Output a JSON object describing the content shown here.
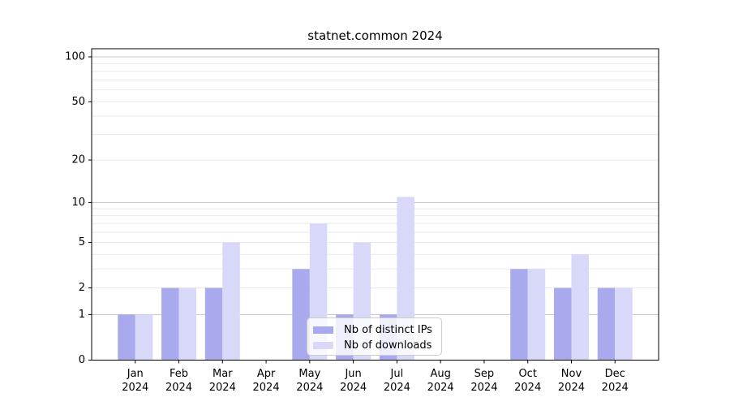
{
  "chart_data": {
    "type": "bar",
    "title": "statnet.common 2024",
    "categories": [
      "Jan 2024",
      "Feb 2024",
      "Mar 2024",
      "Apr 2024",
      "May 2024",
      "Jun 2024",
      "Jul 2024",
      "Aug 2024",
      "Sep 2024",
      "Oct 2024",
      "Nov 2024",
      "Dec 2024"
    ],
    "series": [
      {
        "name": "Nb of distinct IPs",
        "color": "#a9a9ee",
        "values": [
          1,
          2,
          2,
          0,
          3,
          1,
          1,
          0,
          0,
          3,
          2,
          2
        ]
      },
      {
        "name": "Nb of downloads",
        "color": "#d8d8f8",
        "values": [
          1,
          2,
          5,
          0,
          7,
          5,
          11,
          0,
          0,
          3,
          4,
          2
        ]
      }
    ],
    "y_axis": {
      "scale": "log1p",
      "ticks": [
        0,
        1,
        2,
        5,
        10,
        20,
        50,
        100
      ],
      "minor_gridlines": [
        3,
        4,
        6,
        7,
        8,
        9,
        30,
        40,
        60,
        70,
        80,
        90
      ],
      "range": [
        0,
        115
      ]
    },
    "x_axis": {
      "tick_label_lines": 2
    },
    "grid": {
      "emphasized_values": [
        1,
        10,
        100
      ],
      "major_color": "#c6c6c6",
      "minor_color": "#eaeaea"
    },
    "legend": {
      "position": "bottom-center"
    },
    "axis_color": "#000000"
  }
}
